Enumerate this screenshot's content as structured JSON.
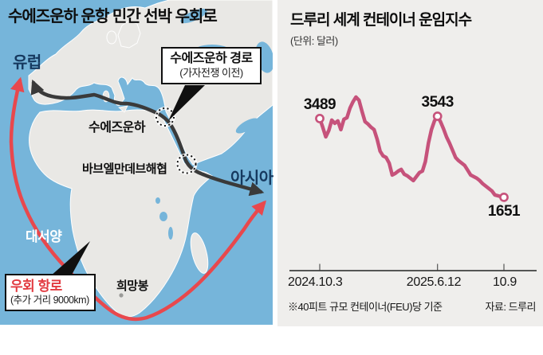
{
  "left_panel": {
    "title": "수에즈운하 운항 민간 선박 우회로",
    "labels": {
      "europe": "유럽",
      "suez_canal": "수에즈운하",
      "bab_el_mandeb": "바브엘만데브해협",
      "asia": "아시아",
      "atlantic": "대서양",
      "cape_of_good_hope": "희망봉"
    },
    "callouts": {
      "suez_route": {
        "title": "수에즈운하 경로",
        "subtitle": "(가자전쟁 이전)"
      },
      "detour_route": {
        "title": "우회 항로",
        "subtitle": "(추가 거리 9000km)"
      }
    },
    "colors": {
      "sea": "#76b5da",
      "land": "#e9e8e5",
      "suez_route": "#3a3a3a",
      "detour_route": "#e8484d",
      "region_label": "#16395f",
      "ocean_label": "#ffffff",
      "detour_label": "#e23a40"
    }
  },
  "right_panel": {
    "title": "드루리 세계 컨테이너 운임지수",
    "unit": "(단위: 달러)",
    "footnote": "※40피트 규모 컨테이너(FEU)당 기준",
    "source": "자료: 드루리"
  },
  "chart_data": {
    "type": "line",
    "title": "드루리 세계 컨테이너 운임지수",
    "unit_label": "(단위: 달러)",
    "line_color": "#c6527b",
    "grid": false,
    "legend": null,
    "ylim": [
      1500,
      4100
    ],
    "x_range": [
      "2024.10.3",
      "2025.10.9"
    ],
    "values": [
      3489,
      3285,
      3062,
      3210,
      3452,
      3378,
      3433,
      3229,
      3470,
      3508,
      3730,
      3879,
      3990,
      3916,
      3656,
      3415,
      3359,
      3285,
      3229,
      3006,
      2728,
      2616,
      2579,
      2449,
      2170,
      2208,
      2263,
      2300,
      2189,
      2152,
      2096,
      2040,
      2133,
      2226,
      2263,
      2486,
      2913,
      3229,
      3433,
      3543,
      3413,
      3246,
      3060,
      2913,
      2746,
      2579,
      2505,
      2449,
      2393,
      2282,
      2170,
      2133,
      2096,
      2040,
      1966,
      1910,
      1854,
      1799,
      1706,
      1687,
      1669,
      1651
    ],
    "labeled_points": [
      {
        "index": 0,
        "label": "3489",
        "value": 3489,
        "position": "above"
      },
      {
        "index": 39,
        "label": "3543",
        "value": 3543,
        "position": "above"
      },
      {
        "index": 61,
        "label": "1651",
        "value": 1651,
        "position": "below"
      }
    ],
    "x_ticks": [
      {
        "index": 0,
        "label": "2024.10.3"
      },
      {
        "index": 39,
        "label": "2025.6.12"
      },
      {
        "index": 61,
        "label": "10.9"
      }
    ]
  }
}
